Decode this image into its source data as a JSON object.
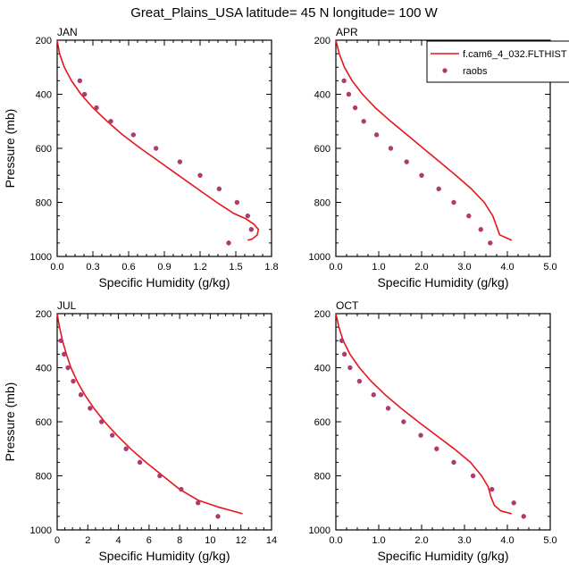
{
  "title": "Great_Plains_USA  latitude= 45 N longitude= 100 W",
  "legend": {
    "model_label": "f.cam6_4_032.FLTHIST",
    "obs_label": "raobs",
    "model_color": "#e8141c",
    "obs_color": "#b03a6e"
  },
  "colors": {
    "model": "#e8141c",
    "obs": "#b03a6e",
    "axis": "#000000"
  },
  "chart_data": [
    {
      "type": "line",
      "panel": "JAN",
      "xlabel": "Specific Humidity (g/kg)",
      "ylabel": "Pressure (mb)",
      "xlim": [
        0,
        1.8
      ],
      "ylim": [
        200,
        1000
      ],
      "y_inverted": true,
      "xticks": [
        "0.0",
        "0.3",
        "0.6",
        "0.9",
        "1.2",
        "1.5",
        "1.8"
      ],
      "yticks": [
        "200",
        "400",
        "600",
        "800",
        "1000"
      ],
      "series": [
        {
          "name": "f.cam6_4_032.FLTHIST",
          "kind": "line",
          "x": [
            0.0,
            0.02,
            0.06,
            0.12,
            0.2,
            0.3,
            0.42,
            0.55,
            0.7,
            0.86,
            1.02,
            1.18,
            1.34,
            1.48,
            1.58,
            1.65,
            1.69,
            1.68,
            1.64,
            1.6
          ],
          "y": [
            200,
            250,
            300,
            350,
            400,
            450,
            500,
            550,
            600,
            650,
            700,
            750,
            800,
            840,
            860,
            880,
            900,
            920,
            935,
            940
          ]
        },
        {
          "name": "raobs",
          "kind": "scatter",
          "x": [
            0.19,
            0.23,
            0.33,
            0.45,
            0.64,
            0.83,
            1.03,
            1.2,
            1.36,
            1.51,
            1.6,
            1.63,
            1.44
          ],
          "y": [
            350,
            400,
            450,
            500,
            550,
            600,
            650,
            700,
            750,
            800,
            850,
            900,
            950
          ]
        }
      ]
    },
    {
      "type": "line",
      "panel": "APR",
      "xlabel": "Specific Humidity (g/kg)",
      "ylabel": "",
      "xlim": [
        0,
        5
      ],
      "ylim": [
        200,
        1000
      ],
      "y_inverted": true,
      "xticks": [
        "0.0",
        "1.0",
        "2.0",
        "3.0",
        "4.0",
        "5.0"
      ],
      "yticks": [
        "200",
        "400",
        "600",
        "800",
        "1000"
      ],
      "series": [
        {
          "name": "f.cam6_4_032.FLTHIST",
          "kind": "line",
          "x": [
            0.0,
            0.08,
            0.2,
            0.38,
            0.62,
            0.92,
            1.28,
            1.66,
            2.04,
            2.42,
            2.8,
            3.16,
            3.46,
            3.66,
            3.82,
            4.1
          ],
          "y": [
            200,
            250,
            300,
            350,
            400,
            450,
            500,
            550,
            600,
            650,
            700,
            750,
            800,
            850,
            920,
            940
          ]
        },
        {
          "name": "raobs",
          "kind": "scatter",
          "x": [
            0.19,
            0.3,
            0.45,
            0.65,
            0.95,
            1.28,
            1.65,
            2.0,
            2.4,
            2.75,
            3.1,
            3.38,
            3.6
          ],
          "y": [
            350,
            400,
            450,
            500,
            550,
            600,
            650,
            700,
            750,
            800,
            850,
            900,
            950
          ]
        }
      ]
    },
    {
      "type": "line",
      "panel": "JUL",
      "xlabel": "Specific Humidity (g/kg)",
      "ylabel": "Pressure (mb)",
      "xlim": [
        0,
        14
      ],
      "ylim": [
        200,
        1000
      ],
      "y_inverted": true,
      "xticks": [
        "0",
        "2",
        "4",
        "6",
        "8",
        "10",
        "12",
        "14"
      ],
      "yticks": [
        "200",
        "400",
        "600",
        "800",
        "1000"
      ],
      "series": [
        {
          "name": "f.cam6_4_032.FLTHIST",
          "kind": "line",
          "x": [
            0.0,
            0.15,
            0.35,
            0.6,
            0.9,
            1.3,
            1.8,
            2.4,
            3.1,
            3.9,
            4.8,
            5.8,
            6.9,
            8.0,
            9.2,
            10.5,
            12.1
          ],
          "y": [
            200,
            250,
            300,
            350,
            400,
            450,
            500,
            550,
            600,
            650,
            700,
            750,
            800,
            850,
            890,
            915,
            940
          ]
        },
        {
          "name": "raobs",
          "kind": "scatter",
          "x": [
            0.25,
            0.45,
            0.7,
            1.05,
            1.55,
            2.15,
            2.9,
            3.6,
            4.5,
            5.4,
            6.7,
            8.1,
            9.2,
            10.5
          ],
          "y": [
            300,
            350,
            400,
            450,
            500,
            550,
            600,
            650,
            700,
            750,
            800,
            850,
            900,
            950
          ]
        }
      ]
    },
    {
      "type": "line",
      "panel": "OCT",
      "xlabel": "Specific Humidity (g/kg)",
      "ylabel": "",
      "xlim": [
        0,
        5
      ],
      "ylim": [
        200,
        1000
      ],
      "y_inverted": true,
      "xticks": [
        "0.0",
        "1.0",
        "2.0",
        "3.0",
        "4.0",
        "5.0"
      ],
      "yticks": [
        "200",
        "400",
        "600",
        "800",
        "1000"
      ],
      "series": [
        {
          "name": "f.cam6_4_032.FLTHIST",
          "kind": "line",
          "x": [
            0.0,
            0.07,
            0.17,
            0.33,
            0.55,
            0.82,
            1.15,
            1.52,
            1.92,
            2.34,
            2.76,
            3.14,
            3.4,
            3.55,
            3.62,
            3.7,
            3.85,
            4.1
          ],
          "y": [
            200,
            250,
            300,
            350,
            400,
            450,
            500,
            550,
            600,
            650,
            700,
            750,
            800,
            840,
            880,
            910,
            930,
            940
          ]
        },
        {
          "name": "raobs",
          "kind": "scatter",
          "x": [
            0.14,
            0.2,
            0.33,
            0.55,
            0.88,
            1.22,
            1.58,
            1.98,
            2.35,
            2.75,
            3.2,
            3.64,
            4.15,
            4.38
          ],
          "y": [
            300,
            350,
            400,
            450,
            500,
            550,
            600,
            650,
            700,
            750,
            800,
            850,
            900,
            950
          ]
        }
      ]
    }
  ]
}
